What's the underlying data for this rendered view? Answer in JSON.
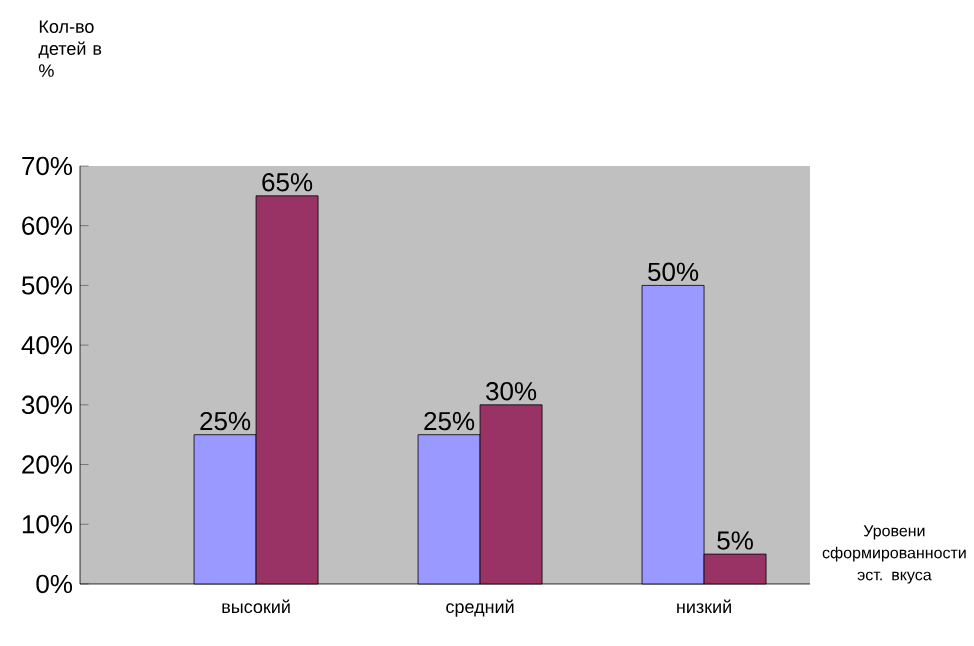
{
  "chart_data": {
    "type": "bar",
    "ylabel": "Кол-во детей в %",
    "xlabel": "Уровени сформированности эст. вкуса",
    "categories": [
      "высокий",
      "средний",
      "низкий"
    ],
    "series": [
      {
        "color": "#9999ff",
        "values": [
          25,
          25,
          50
        ],
        "value_labels": [
          "25%",
          "25%",
          "50%"
        ]
      },
      {
        "color": "#993366",
        "values": [
          65,
          30,
          5
        ],
        "value_labels": [
          "65%",
          "30%",
          "5%"
        ]
      }
    ],
    "ylim": [
      0,
      70
    ],
    "yticks": [
      {
        "value": 0,
        "label": "0%"
      },
      {
        "value": 10,
        "label": "10%"
      },
      {
        "value": 20,
        "label": "20%"
      },
      {
        "value": 30,
        "label": "30%"
      },
      {
        "value": 40,
        "label": "40%"
      },
      {
        "value": 50,
        "label": "50%"
      },
      {
        "value": 60,
        "label": "60%"
      },
      {
        "value": 70,
        "label": "70%"
      }
    ],
    "grid": false
  }
}
